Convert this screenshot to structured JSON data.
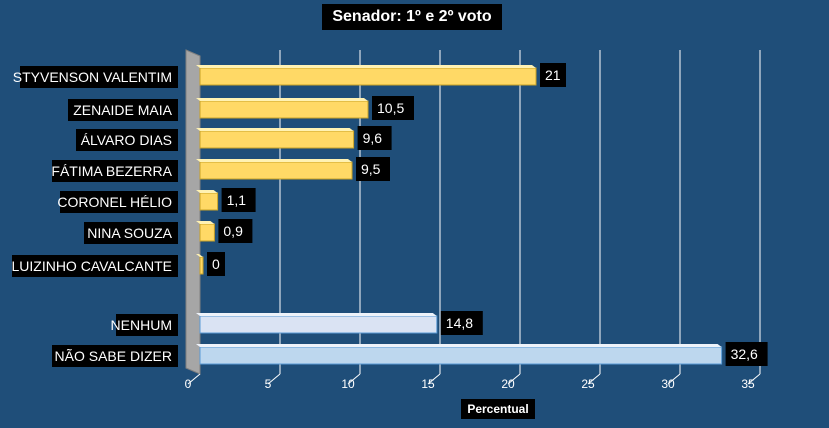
{
  "chart_data": {
    "type": "bar",
    "orientation": "horizontal",
    "title": "Senador: 1º e 2º voto",
    "xlabel": "Percentual",
    "ylabel": "",
    "xlim": [
      0,
      35
    ],
    "xticks": [
      "0",
      "5",
      "10",
      "15",
      "20",
      "25",
      "30",
      "35"
    ],
    "grid": true,
    "categories": [
      "STYVENSON VALENTIM",
      "ZENAIDE MAIA",
      "ÁLVARO DIAS",
      "FÁTIMA BEZERRA",
      "CORONEL HÉLIO",
      "NINA SOUZA",
      "LUIZINHO CAVALCANTE",
      "NENHUM",
      "NÃO SABE DIZER"
    ],
    "values": [
      21,
      10.5,
      9.6,
      9.5,
      1.1,
      0.9,
      0,
      14.8,
      32.6
    ],
    "value_labels": [
      "21",
      "10,5",
      "9,6",
      "9,5",
      "1,1",
      "0,9",
      "0",
      "14,8",
      "32,6"
    ],
    "bar_groups": [
      "candidate",
      "candidate",
      "candidate",
      "candidate",
      "candidate",
      "candidate",
      "candidate",
      "nenhum",
      "nao-sabe"
    ],
    "colors": {
      "background": "#1f4e79",
      "candidate": "#ffd966",
      "nenhum": "#dae3f3",
      "nao-sabe": "#bdd7ee",
      "grid": "#ffffff",
      "label_box": "#000000",
      "text": "#ffffff"
    }
  }
}
